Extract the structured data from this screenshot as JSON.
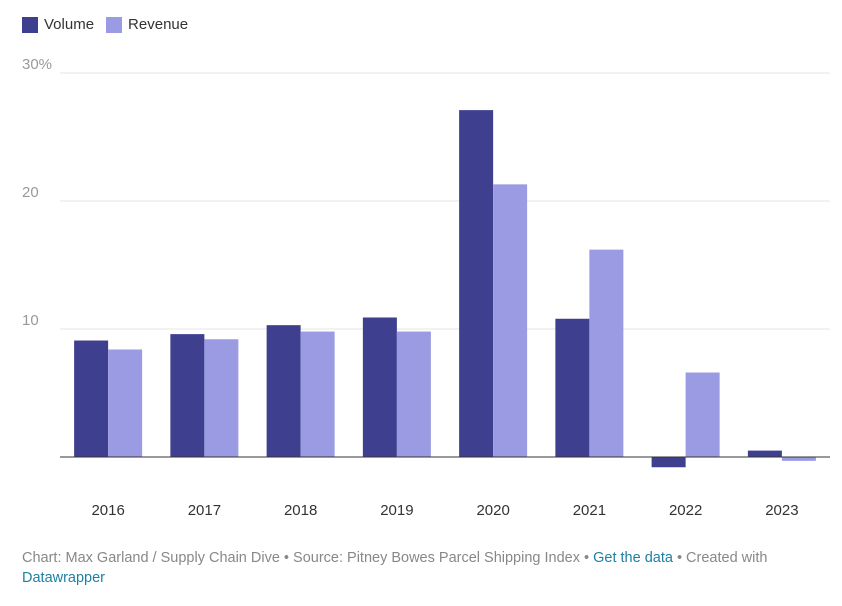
{
  "chart_data": {
    "type": "bar",
    "title": "",
    "xlabel": "",
    "ylabel": "",
    "categories": [
      "2016",
      "2017",
      "2018",
      "2019",
      "2020",
      "2021",
      "2022",
      "2023"
    ],
    "series": [
      {
        "name": "Volume",
        "color": "#3f3f8f",
        "values": [
          9.1,
          9.6,
          10.3,
          10.9,
          27.1,
          10.8,
          -0.8,
          0.5
        ]
      },
      {
        "name": "Revenue",
        "color": "#9b9be3",
        "values": [
          8.4,
          9.2,
          9.8,
          9.8,
          21.3,
          16.2,
          6.6,
          -0.3
        ]
      }
    ],
    "ylim": [
      -1,
      30
    ],
    "yticks": [
      {
        "value": 10,
        "label": "10"
      },
      {
        "value": 20,
        "label": "20"
      },
      {
        "value": 30,
        "label": "30%"
      }
    ],
    "grid": true,
    "legend": "top-left"
  },
  "footer": {
    "credit": "Chart: Max Garland / Supply Chain Dive • Source: Pitney Bowes Parcel Shipping Index • ",
    "get_data": "Get the data",
    "created_with": " • Created with ",
    "datawrapper": "Datawrapper"
  }
}
